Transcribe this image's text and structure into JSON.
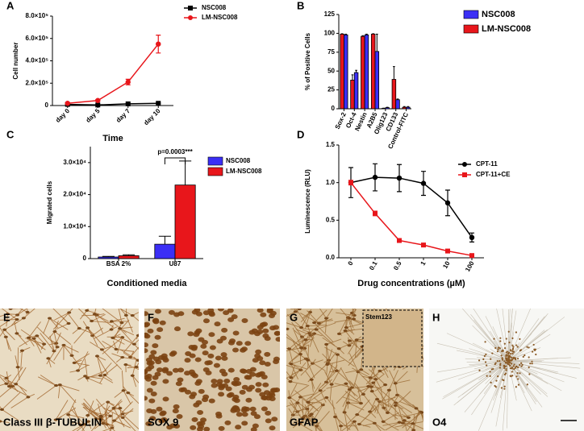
{
  "chart_data": [
    {
      "type": "line",
      "panel_label": "A",
      "ylabel": "Cell number",
      "xlabel": "Time",
      "categories": [
        "day 0",
        "day 5",
        "day 7",
        "day 10"
      ],
      "ylim": [
        0,
        800000
      ],
      "yticks": [
        0,
        {
          "value": 200000,
          "label": "2.0×10⁵"
        },
        {
          "value": 400000,
          "label": "4.0×10⁵"
        },
        {
          "value": 600000,
          "label": "6.0×10⁵"
        },
        {
          "value": 800000,
          "label": "8.0×10⁵"
        }
      ],
      "series": [
        {
          "name": "NSC008",
          "color": "#000000",
          "marker": "square",
          "values": [
            10000,
            5000,
            15000,
            20000
          ],
          "errors": [
            2000,
            2000,
            3000,
            4000
          ]
        },
        {
          "name": "LM-NSC008",
          "color": "#e8161b",
          "marker": "circle",
          "values": [
            20000,
            45000,
            210000,
            550000
          ],
          "errors": [
            3000,
            8000,
            25000,
            80000
          ]
        }
      ]
    },
    {
      "type": "bar",
      "panel_label": "B",
      "ylabel": "% of Positive Cells",
      "categories": [
        "Sox-2",
        "Oct-4",
        "Nestin",
        "A2B5",
        "Olig123",
        "CD133",
        "Control-FITC"
      ],
      "ylim": [
        0,
        125
      ],
      "yticks": [
        0,
        25,
        50,
        75,
        100,
        125
      ],
      "series": [
        {
          "name": "NSC008",
          "color": "#3b2ff5",
          "values": [
            98,
            48,
            98,
            76,
            1.5,
            12,
            2
          ],
          "errors": [
            1,
            3,
            1,
            23,
            0.5,
            1,
            1
          ]
        },
        {
          "name": "LM-NSC008",
          "color": "#e8161b",
          "values": [
            99,
            38,
            96,
            99,
            0.5,
            39,
            2
          ],
          "errors": [
            0.5,
            7,
            1,
            0.5,
            0.3,
            17,
            1
          ]
        }
      ]
    },
    {
      "type": "bar",
      "panel_label": "C",
      "ylabel": "Migrated cells",
      "xlabel": "Conditioned media",
      "categories": [
        "BSA 2%",
        "U87"
      ],
      "ylim": [
        0,
        35000
      ],
      "yticks": [
        0,
        {
          "value": 10000,
          "label": "1.0×10⁴"
        },
        {
          "value": 20000,
          "label": "2.0×10⁴"
        },
        {
          "value": 30000,
          "label": "3.0×10⁴"
        }
      ],
      "annotation": "p=0.0003***",
      "series": [
        {
          "name": "NSC008",
          "color": "#3b2ff5",
          "values": [
            500,
            4500
          ],
          "errors": [
            200,
            2500
          ]
        },
        {
          "name": "LM-NSC008",
          "color": "#e8161b",
          "values": [
            900,
            23000
          ],
          "errors": [
            300,
            7500
          ]
        }
      ]
    },
    {
      "type": "line",
      "panel_label": "D",
      "ylabel": "Luminescence (RLU)",
      "xlabel": "Drug concentrations (µM)",
      "categories": [
        "0",
        "0.1",
        "0.5",
        "1",
        "10",
        "100"
      ],
      "ylim": [
        0,
        1.5
      ],
      "yticks": [
        {
          "value": 0,
          "label": "0.0"
        },
        0.5,
        {
          "value": 1,
          "label": "1.0"
        },
        1.5
      ],
      "series": [
        {
          "name": "CPT-11",
          "color": "#000000",
          "marker": "circle",
          "values": [
            1.0,
            1.07,
            1.06,
            0.99,
            0.73,
            0.27
          ],
          "errors": [
            0.2,
            0.18,
            0.18,
            0.16,
            0.17,
            0.06
          ]
        },
        {
          "name": "CPT-11+CE",
          "color": "#e8161b",
          "marker": "square",
          "values": [
            1.0,
            0.59,
            0.23,
            0.17,
            0.09,
            0.03
          ],
          "errors": [
            0.03,
            0.03,
            0.02,
            0.02,
            0.01,
            0.01
          ]
        }
      ]
    }
  ],
  "micrographs": [
    {
      "panel_label": "E",
      "label": "Class III β-TUBULIN"
    },
    {
      "panel_label": "F",
      "label": "SOX 9"
    },
    {
      "panel_label": "G",
      "label": "GFAP",
      "inset": "Stem123"
    },
    {
      "panel_label": "H",
      "label": "O4"
    }
  ]
}
